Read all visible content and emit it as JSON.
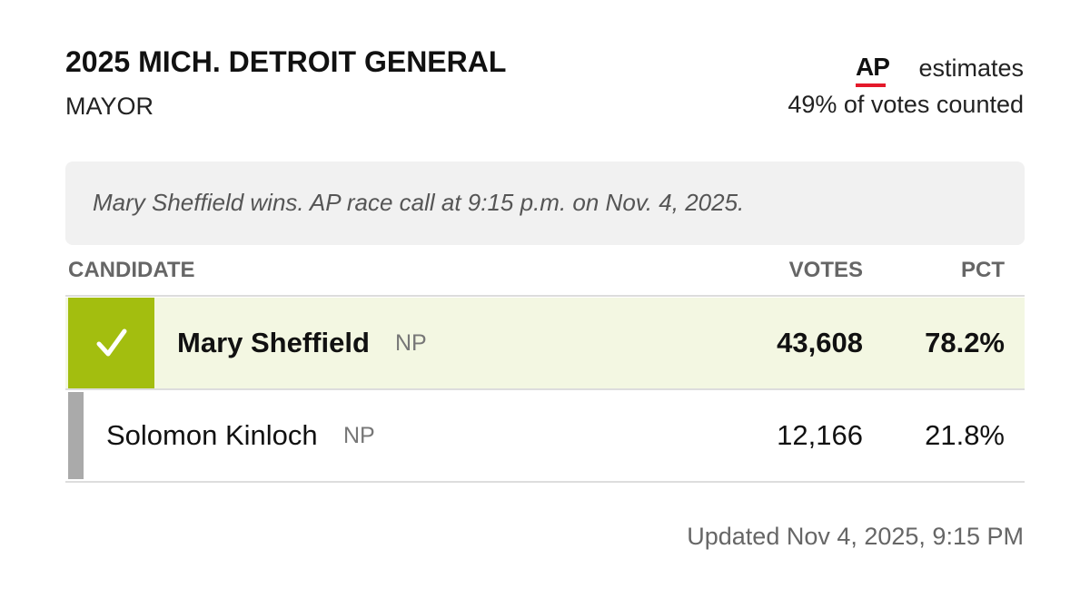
{
  "header": {
    "title": "2025 MICH. DETROIT GENERAL",
    "subtitle": "MAYOR",
    "source": "AP",
    "source_note": "estimates",
    "counted": "49% of votes counted"
  },
  "notice": "Mary Sheffield wins. AP race call at 9:15 p.m. on Nov. 4, 2025.",
  "table": {
    "columns": [
      "CANDIDATE",
      "VOTES",
      "PCT"
    ],
    "rows": [
      {
        "name": "Mary Sheffield",
        "party": "NP",
        "votes": "43,608",
        "pct": "78.2%",
        "winner": true
      },
      {
        "name": "Solomon Kinloch",
        "party": "NP",
        "votes": "12,166",
        "pct": "21.8%",
        "winner": false
      }
    ]
  },
  "footer": "Updated Nov 4, 2025, 9:15 PM"
}
